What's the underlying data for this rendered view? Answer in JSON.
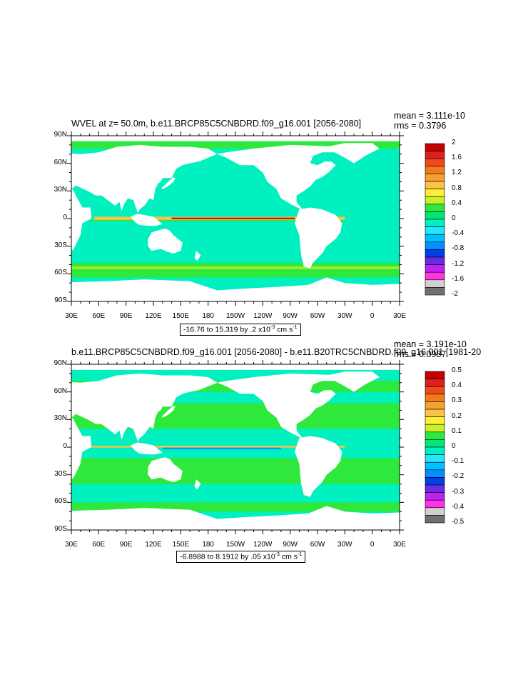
{
  "panels": [
    {
      "title": "WVEL at z=  50.0m, b.e11.BRCP85C5CNBDRD.f09_g16.001 [2056-2080]",
      "mean": "mean = 3.111e-10",
      "rms": "rms = 0.3796",
      "info": "-16.76 to 15.319 by .2 x10",
      "info_exp": "-3",
      "info_units": " cm s",
      "info_units_exp": "-1",
      "colorbar_labels": [
        "2",
        "1.6",
        "1.2",
        "0.8",
        "0.4",
        "0",
        "-0.4",
        "-0.8",
        "-1.2",
        "-1.6",
        "-2"
      ],
      "colorbar_colors": [
        "#c40000",
        "#e01e1e",
        "#ee4a1a",
        "#f07a1c",
        "#f5a030",
        "#f8c447",
        "#ffee33",
        "#c8f02a",
        "#2ee83c",
        "#00e67a",
        "#00f0c0",
        "#22e6ff",
        "#00c0ff",
        "#0090ff",
        "#0040e6",
        "#6a2ae6",
        "#c020f0",
        "#ff33e6",
        "#d0d0d0",
        "#707070"
      ]
    },
    {
      "title": "b.e11.BRCP85C5CNBDRD.f09_g16.001 [2056-2080] - b.e11.B20TRC5CNBDRD.f09_g16.001 [1981-20",
      "mean": "mean = 3.191e-10",
      "rms": "rms = 0.0987",
      "info": "-6.8988 to 8.1912 by .05 x10",
      "info_exp": "-3",
      "info_units": " cm s",
      "info_units_exp": "-1",
      "colorbar_labels": [
        "0.5",
        "0.4",
        "0.3",
        "0.2",
        "0.1",
        "0",
        "-0.1",
        "-0.2",
        "-0.3",
        "-0.4",
        "-0.5"
      ],
      "colorbar_colors": [
        "#c40000",
        "#e01e1e",
        "#ee4a1a",
        "#f07a1c",
        "#f5a030",
        "#f8c447",
        "#ffee33",
        "#c8f02a",
        "#2ee83c",
        "#00e67a",
        "#00f0c0",
        "#22e6ff",
        "#00c0ff",
        "#0090ff",
        "#0040e6",
        "#6a2ae6",
        "#c020f0",
        "#ff33e6",
        "#d0d0d0",
        "#707070"
      ]
    }
  ],
  "lat_labels": [
    "90N",
    "60N",
    "30N",
    "0",
    "30S",
    "60S",
    "90S"
  ],
  "lon_labels": [
    "30E",
    "60E",
    "90E",
    "120E",
    "150E",
    "180",
    "150W",
    "120W",
    "90W",
    "60W",
    "30W",
    "0",
    "30E"
  ],
  "colors": {
    "ocean_base": "#00f0c0",
    "ocean_positive": "#2ee83c",
    "land": "#ffffff"
  }
}
